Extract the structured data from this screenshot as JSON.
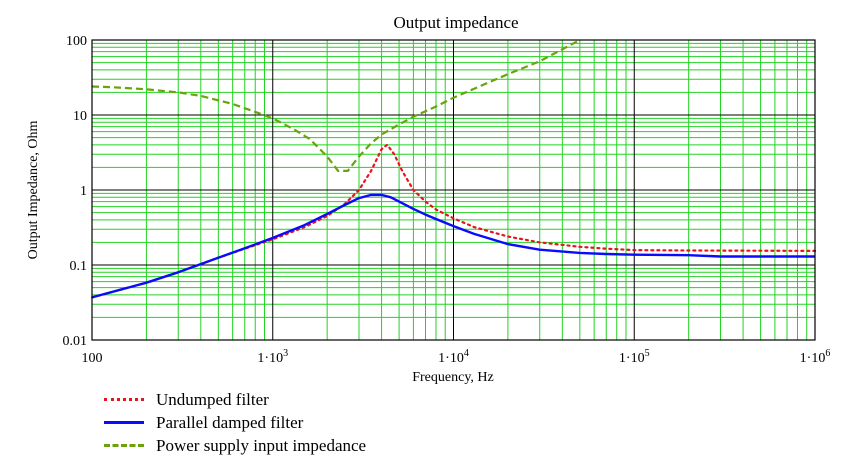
{
  "chart_data": {
    "type": "line",
    "title": "Output impedance",
    "xlabel": "Frequency, Hz",
    "ylabel": "Output Impedance, Ohm",
    "x_scale": "log",
    "y_scale": "log",
    "xlim": [
      100,
      1000000
    ],
    "ylim": [
      0.01,
      100
    ],
    "grid": true,
    "legend_position": "bottom-left",
    "x_ticks": [
      {
        "value": 100,
        "base": "100",
        "exp": ""
      },
      {
        "value": 1000,
        "base": "1·10",
        "exp": "3"
      },
      {
        "value": 10000,
        "base": "1·10",
        "exp": "4"
      },
      {
        "value": 100000,
        "base": "1·10",
        "exp": "5"
      },
      {
        "value": 1000000,
        "base": "1·10",
        "exp": "6"
      }
    ],
    "y_ticks": [
      {
        "value": 100,
        "label": "100"
      },
      {
        "value": 10,
        "label": "10"
      },
      {
        "value": 1,
        "label": "1"
      },
      {
        "value": 0.1,
        "label": "0.1"
      },
      {
        "value": 0.01,
        "label": "0.01"
      }
    ],
    "series": [
      {
        "name": "Undumped filter",
        "color": "#e8141c",
        "style": "dotted",
        "x": [
          100,
          200,
          300,
          500,
          700,
          1000,
          1500,
          2000,
          2500,
          3000,
          3500,
          4000,
          4300,
          4700,
          5200,
          6000,
          7000,
          8000,
          10000,
          13000,
          20000,
          30000,
          50000,
          70000,
          100000,
          200000,
          500000,
          1000000
        ],
        "y": [
          0.037,
          0.058,
          0.08,
          0.125,
          0.165,
          0.22,
          0.32,
          0.45,
          0.65,
          1.0,
          1.8,
          3.5,
          4.0,
          3.0,
          1.8,
          1.0,
          0.7,
          0.55,
          0.42,
          0.32,
          0.24,
          0.2,
          0.175,
          0.165,
          0.158,
          0.156,
          0.155,
          0.154
        ]
      },
      {
        "name": "Parallel damped filter",
        "color": "#0a0aff",
        "style": "solid",
        "x": [
          100,
          200,
          300,
          500,
          700,
          1000,
          1500,
          2000,
          2500,
          3000,
          3500,
          4000,
          4500,
          5000,
          6000,
          7000,
          8000,
          10000,
          13000,
          20000,
          30000,
          50000,
          70000,
          100000,
          200000,
          300000,
          500000,
          1000000
        ],
        "y": [
          0.037,
          0.058,
          0.08,
          0.125,
          0.167,
          0.23,
          0.34,
          0.48,
          0.63,
          0.78,
          0.86,
          0.86,
          0.8,
          0.7,
          0.56,
          0.47,
          0.41,
          0.33,
          0.26,
          0.19,
          0.16,
          0.145,
          0.14,
          0.137,
          0.135,
          0.13,
          0.13,
          0.13
        ]
      },
      {
        "name": "Power supply input impedance",
        "color": "#6aa30c",
        "style": "dashed",
        "x": [
          100,
          130,
          200,
          300,
          400,
          600,
          800,
          1000,
          1300,
          1600,
          2000,
          2300,
          2600,
          3000,
          3500,
          4000,
          5000,
          6000,
          8000,
          10000,
          15000,
          20000,
          30000,
          50000
        ],
        "y": [
          24,
          23.5,
          22,
          20,
          18,
          14,
          11,
          9,
          6.5,
          4.8,
          2.8,
          1.8,
          1.8,
          2.8,
          4.2,
          5.5,
          7.5,
          9.5,
          13,
          17,
          26,
          35,
          52,
          100
        ]
      }
    ]
  }
}
